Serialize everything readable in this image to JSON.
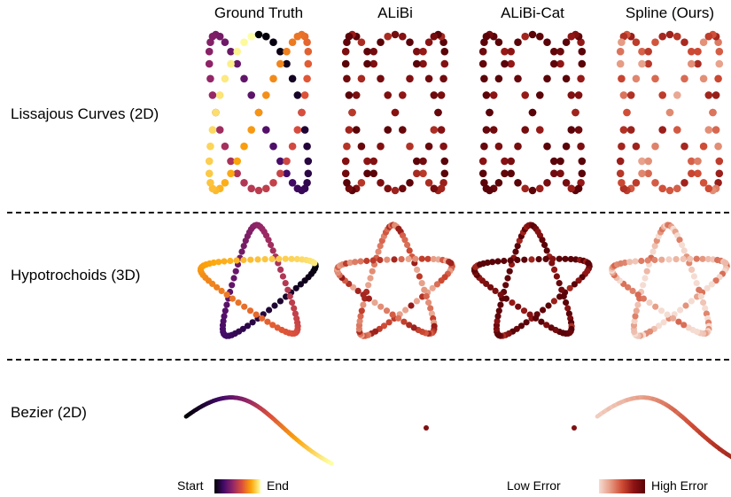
{
  "columns": [
    "Ground Truth",
    "ALiBi",
    "ALiBi-Cat",
    "Spline (Ours)"
  ],
  "rows": [
    "Lissajous Curves (2D)",
    "Hypotrochoids (3D)",
    "Bezier (2D)"
  ],
  "legend": {
    "start_label": "Start",
    "end_label": "End",
    "low_label": "Low Error",
    "high_label": "High Error"
  },
  "colormaps": {
    "inferno": [
      "#000004",
      "#420a68",
      "#932667",
      "#dd513a",
      "#fca50a",
      "#fcffa4"
    ],
    "error": [
      "#f5dcd2",
      "#e69a82",
      "#cf4b34",
      "#8e1414",
      "#5a0308"
    ]
  },
  "chart_data": [
    {
      "type": "scatter",
      "panel": "Lissajous Curves (2D)",
      "curve": "lissajous",
      "error_levels": {
        "ALiBi": 0.85,
        "ALiBi-Cat": 0.95,
        "Spline (Ours)": 0.45
      }
    },
    {
      "type": "scatter",
      "panel": "Hypotrochoids (3D)",
      "curve": "hypotrochoid",
      "error_levels": {
        "ALiBi": 0.45,
        "ALiBi-Cat": 0.9,
        "Spline (Ours)": 0.15
      }
    },
    {
      "type": "line",
      "panel": "Bezier (2D)",
      "curve": "bezier",
      "error_levels": {
        "ALiBi": 0.9,
        "ALiBi-Cat": 0.95,
        "Spline (Ours)": 0.3
      }
    }
  ]
}
